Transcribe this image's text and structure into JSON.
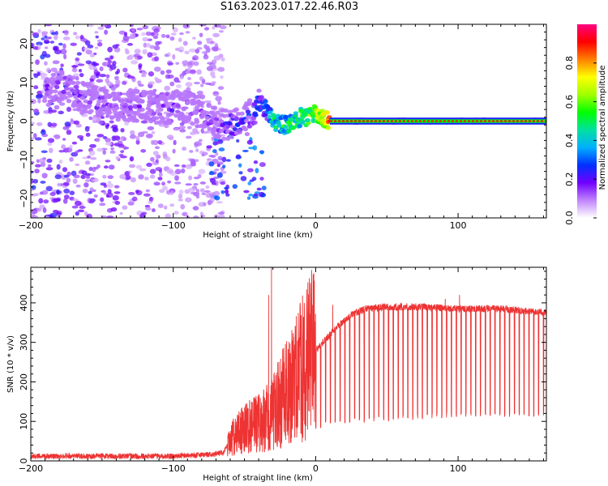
{
  "title": "S163.2023.017.22.46.R03",
  "chart_data": [
    {
      "type": "heatmap",
      "xlabel": "Height of straight line (km)",
      "ylabel": "Frequency (Hz)",
      "xlim": [
        -200,
        162
      ],
      "ylim": [
        -25,
        25
      ],
      "xticks": [
        -200,
        -100,
        0,
        100
      ],
      "yticks": [
        -20,
        -10,
        0,
        10,
        20
      ],
      "colorbar": {
        "label": "Normalized spectral amplitude",
        "range": [
          0,
          1
        ],
        "ticks": [
          0.0,
          0.2,
          0.4,
          0.6,
          0.8
        ],
        "colormap": [
          "#ffffff",
          "#c084fc",
          "#7000ff",
          "#0030ff",
          "#00b0ff",
          "#00e0a0",
          "#00ff00",
          "#a0ff00",
          "#ffff00",
          "#ff8000",
          "#ff0000",
          "#ff0080"
        ]
      },
      "ridge": {
        "x": [
          -185,
          -175,
          -165,
          -150,
          -135,
          -120,
          -105,
          -95,
          -85,
          -75,
          -65,
          -57,
          -50,
          -45,
          -40,
          -35,
          -30,
          -25,
          -20,
          -15,
          -10,
          -5,
          0,
          5,
          10,
          20,
          40,
          60,
          80,
          100,
          120,
          140,
          160
        ],
        "frequency": [
          8,
          9,
          6,
          5,
          4,
          4,
          3,
          4,
          3,
          1,
          -1,
          -1,
          0,
          2,
          5,
          3,
          0,
          -1,
          -1,
          0,
          1,
          1,
          2,
          1,
          0,
          0,
          0,
          0,
          0,
          0,
          0,
          0,
          0
        ],
        "amplitude": [
          0.25,
          0.3,
          0.2,
          0.2,
          0.2,
          0.2,
          0.25,
          0.25,
          0.2,
          0.25,
          0.3,
          0.35,
          0.3,
          0.35,
          0.4,
          0.45,
          0.55,
          0.6,
          0.6,
          0.6,
          0.65,
          0.7,
          0.75,
          0.85,
          0.95,
          1.0,
          1.0,
          1.0,
          1.0,
          1.0,
          1.0,
          1.0,
          1.0
        ]
      }
    },
    {
      "type": "line",
      "xlabel": "Height of straight line (km)",
      "ylabel": "SNR (10 * v/v)",
      "xlim": [
        -200,
        162
      ],
      "ylim": [
        0,
        490
      ],
      "xticks": [
        -200,
        -100,
        0,
        100
      ],
      "yticks": [
        0,
        100,
        200,
        300,
        400
      ],
      "series": [
        {
          "color": "#ee3333",
          "baseline": {
            "x": [
              -200,
              -150,
              -100,
              -80,
              -65,
              -58,
              -50,
              -40,
              -32,
              -25,
              -15,
              -5,
              5,
              15,
              25,
              35,
              50,
              70,
              100,
              130,
              162
            ],
            "y": [
              12,
              12,
              12,
              15,
              20,
              60,
              80,
              100,
              110,
              150,
              200,
              260,
              300,
              340,
              370,
              385,
              390,
              390,
              385,
              385,
              375
            ]
          },
          "dropout_floor": {
            "x": [
              0,
              20,
              50,
              100,
              162
            ],
            "y": [
              80,
              95,
              100,
              110,
              110
            ]
          },
          "peaks": [
            {
              "x": -31,
              "y": 490
            },
            {
              "x": -33,
              "y": 420
            },
            {
              "x": 12,
              "y": 395
            },
            {
              "x": 101,
              "y": 420
            },
            {
              "x": 91,
              "y": 410
            }
          ]
        }
      ]
    }
  ]
}
